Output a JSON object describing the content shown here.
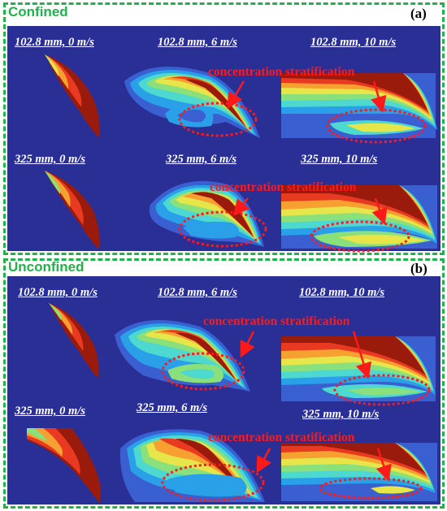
{
  "panels": [
    {
      "title": "Confined",
      "tag": "(a)",
      "labels": [
        "102.8 mm, 0 m/s",
        "102.8 mm, 6 m/s",
        "102.8 mm, 10 m/s",
        "325 mm, 0 m/s",
        "325 mm, 6 m/s",
        "325 mm, 10 m/s"
      ],
      "annotation_top": "concentration stratification",
      "annotation_bottom": "concentration stratification"
    },
    {
      "title": "Unconfined",
      "tag": "(b)",
      "labels": [
        "102.8 mm, 0 m/s",
        "102.8 mm, 6 m/s",
        "102.8 mm, 10 m/s",
        "325 mm, 0 m/s",
        "325 mm, 6 m/s",
        "325 mm, 10 m/s"
      ],
      "annotation_top": "concentration stratification",
      "annotation_bottom": "concentration stratification"
    }
  ],
  "colors": {
    "frame": "#22b14c",
    "background": "#2a2f95",
    "annotation": "#ff1a1a",
    "contour_scale": [
      "#3a5fd0",
      "#2aa0e8",
      "#4dd8d0",
      "#8ae07a",
      "#e6e64a",
      "#f5a030",
      "#e83a20",
      "#9a1a0c"
    ]
  }
}
